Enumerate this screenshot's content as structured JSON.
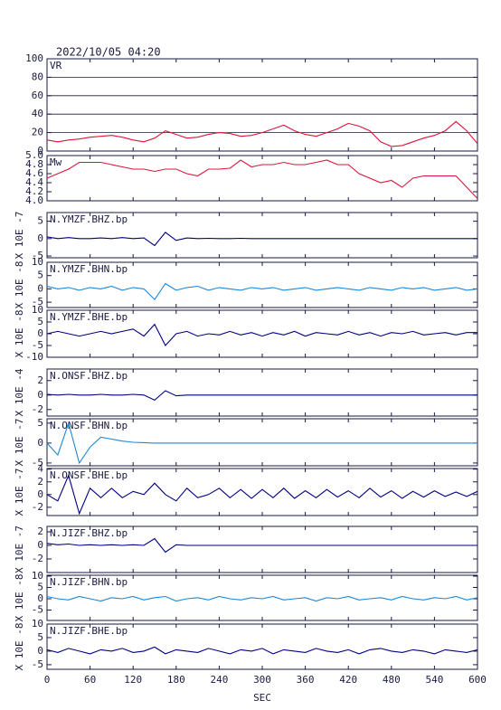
{
  "title": "2022/10/05 04:20",
  "chart_data": [
    {
      "type": "line",
      "title": "VR",
      "xlim": [
        0,
        600
      ],
      "ylim": [
        0,
        100
      ],
      "yticks": [
        0,
        20,
        40,
        60,
        80,
        100
      ],
      "grid": true,
      "x": [
        0,
        15,
        30,
        45,
        60,
        75,
        90,
        105,
        120,
        135,
        150,
        165,
        180,
        195,
        210,
        225,
        240,
        255,
        270,
        285,
        300,
        315,
        330,
        345,
        360,
        375,
        390,
        405,
        420,
        435,
        450,
        465,
        480,
        495,
        510,
        525,
        540,
        555,
        570,
        585,
        600
      ],
      "series": [
        {
          "color": "#dc143c",
          "values": [
            12,
            10,
            12,
            13,
            15,
            16,
            17,
            15,
            12,
            10,
            14,
            22,
            18,
            14,
            15,
            18,
            20,
            19,
            16,
            17,
            20,
            24,
            28,
            22,
            18,
            16,
            20,
            24,
            30,
            27,
            22,
            10,
            5,
            6,
            10,
            14,
            17,
            22,
            32,
            22,
            8
          ]
        }
      ]
    },
    {
      "type": "line",
      "title": "Mw",
      "xlim": [
        0,
        600
      ],
      "ylim": [
        4,
        5
      ],
      "yticks": [
        {
          "value": 4,
          "label": "4.0"
        },
        4.2,
        4.4,
        4.6,
        4.8,
        {
          "value": 5,
          "label": "5.0"
        }
      ],
      "grid": false,
      "x": [
        0,
        15,
        30,
        45,
        60,
        75,
        90,
        105,
        120,
        135,
        150,
        165,
        180,
        195,
        210,
        225,
        240,
        255,
        270,
        285,
        300,
        315,
        330,
        345,
        360,
        375,
        390,
        405,
        420,
        435,
        450,
        465,
        480,
        495,
        510,
        525,
        540,
        555,
        570,
        585,
        600
      ],
      "series": [
        {
          "color": "#dc143c",
          "values": [
            4.5,
            4.6,
            4.7,
            4.85,
            4.85,
            4.85,
            4.8,
            4.75,
            4.7,
            4.7,
            4.65,
            4.7,
            4.7,
            4.6,
            4.55,
            4.7,
            4.7,
            4.72,
            4.9,
            4.75,
            4.8,
            4.8,
            4.85,
            4.8,
            4.8,
            4.85,
            4.9,
            4.8,
            4.8,
            4.6,
            4.5,
            4.4,
            4.45,
            4.3,
            4.5,
            4.55,
            4.55,
            4.55,
            4.55,
            4.3,
            4.05
          ]
        }
      ]
    },
    {
      "type": "line",
      "title": "N.YMZF.BHZ.bp",
      "ylabel": "X 10E -7",
      "xlim": [
        0,
        600
      ],
      "ylim": [
        -5.5,
        7.5
      ],
      "yticks": [
        -5,
        0,
        5
      ],
      "x": [
        0,
        15,
        30,
        45,
        60,
        75,
        90,
        105,
        120,
        135,
        150,
        165,
        180,
        195,
        210,
        225,
        240,
        255,
        270,
        285,
        300,
        315,
        330,
        345,
        360,
        375,
        390,
        405,
        420,
        435,
        450,
        465,
        480,
        495,
        510,
        525,
        540,
        555,
        570,
        585,
        600
      ],
      "series": [
        {
          "color": "#000080",
          "values": [
            0.5,
            0,
            0.3,
            0,
            0,
            0.2,
            0,
            0.3,
            0,
            0.2,
            -2,
            1.8,
            -0.5,
            0.2,
            0,
            0.1,
            0,
            0,
            0.1,
            0,
            0,
            0,
            0,
            0,
            0,
            0,
            0,
            0,
            0,
            0,
            0,
            0,
            0,
            0,
            0,
            0,
            0,
            0,
            0,
            0,
            0
          ]
        }
      ]
    },
    {
      "type": "line",
      "title": "N.YMZF.BHN.bp",
      "ylabel": "X 10E -8",
      "xlim": [
        0,
        600
      ],
      "ylim": [
        -7,
        10
      ],
      "yticks": [
        -5,
        0,
        5,
        10
      ],
      "x": [
        0,
        15,
        30,
        45,
        60,
        75,
        90,
        105,
        120,
        135,
        150,
        165,
        180,
        195,
        210,
        225,
        240,
        255,
        270,
        285,
        300,
        315,
        330,
        345,
        360,
        375,
        390,
        405,
        420,
        435,
        450,
        465,
        480,
        495,
        510,
        525,
        540,
        555,
        570,
        585,
        600
      ],
      "series": [
        {
          "color": "#1e88d8",
          "values": [
            1,
            0,
            0.5,
            -0.5,
            0.5,
            0,
            1,
            -0.5,
            0.5,
            0,
            -4,
            2,
            -0.5,
            0.5,
            1,
            -0.5,
            0.5,
            0,
            -0.5,
            0.5,
            0,
            0.5,
            -0.5,
            0,
            0.5,
            -0.5,
            0,
            0.5,
            0,
            -0.5,
            0.5,
            0,
            -0.5,
            0.5,
            0,
            0.5,
            -0.5,
            0,
            0.5,
            -0.5,
            0
          ]
        }
      ]
    },
    {
      "type": "line",
      "title": "N.YMZF.BHE.bp",
      "ylabel": "X 10E -8",
      "xlim": [
        0,
        600
      ],
      "ylim": [
        -10,
        10
      ],
      "yticks": [
        -10,
        -5,
        0,
        5,
        10
      ],
      "x": [
        0,
        15,
        30,
        45,
        60,
        75,
        90,
        105,
        120,
        135,
        150,
        165,
        180,
        195,
        210,
        225,
        240,
        255,
        270,
        285,
        300,
        315,
        330,
        345,
        360,
        375,
        390,
        405,
        420,
        435,
        450,
        465,
        480,
        495,
        510,
        525,
        540,
        555,
        570,
        585,
        600
      ],
      "series": [
        {
          "color": "#000080",
          "values": [
            0,
            1,
            0,
            -1,
            0,
            1,
            0,
            1,
            2,
            -1,
            4,
            -5,
            0,
            1,
            -1,
            0,
            -0.5,
            1,
            -0.5,
            0.5,
            -1,
            0.5,
            -0.5,
            1,
            -1,
            0.5,
            0,
            -0.5,
            1,
            -0.5,
            0.5,
            -1,
            0.5,
            0,
            1,
            -0.5,
            0,
            0.5,
            -0.5,
            0.5,
            0.5
          ]
        }
      ]
    },
    {
      "type": "line",
      "title": "N.ONSF.BHZ.bp",
      "ylabel": "X 10E -4",
      "xlim": [
        0,
        600
      ],
      "ylim": [
        -2.9,
        3.6
      ],
      "yticks": [
        -2,
        0,
        2
      ],
      "x": [
        0,
        15,
        30,
        45,
        60,
        75,
        90,
        105,
        120,
        135,
        150,
        165,
        180,
        195,
        210,
        225,
        240,
        255,
        270,
        285,
        300,
        315,
        330,
        345,
        360,
        375,
        390,
        405,
        420,
        435,
        450,
        465,
        480,
        495,
        510,
        525,
        540,
        555,
        570,
        585,
        600
      ],
      "series": [
        {
          "color": "#000080",
          "values": [
            0.1,
            0,
            0.1,
            0,
            0,
            0.1,
            0,
            0,
            0.1,
            0,
            -0.7,
            0.6,
            -0.1,
            0,
            0,
            0,
            0,
            0,
            0,
            0,
            0,
            0,
            0,
            0,
            0,
            0,
            0,
            0,
            0,
            0,
            0,
            0,
            0,
            0,
            0,
            0,
            0,
            0,
            0,
            0,
            0
          ]
        }
      ]
    },
    {
      "type": "line",
      "title": "N.ONSF.BHN.bp",
      "ylabel": "X 10E -7",
      "xlim": [
        0,
        600
      ],
      "ylim": [
        -5.7,
        6.1
      ],
      "yticks": [
        -5,
        0,
        5
      ],
      "x": [
        0,
        15,
        30,
        45,
        60,
        75,
        90,
        105,
        120,
        135,
        150,
        165,
        180,
        195,
        210,
        225,
        240,
        255,
        270,
        285,
        300,
        315,
        330,
        345,
        360,
        375,
        390,
        405,
        420,
        435,
        450,
        465,
        480,
        495,
        510,
        525,
        540,
        555,
        570,
        585,
        600
      ],
      "series": [
        {
          "color": "#1e88d8",
          "values": [
            0,
            -3,
            5,
            -5,
            -1,
            1.5,
            1,
            0.5,
            0.2,
            0.1,
            0,
            0,
            0,
            0,
            0,
            0,
            0,
            0,
            0,
            0,
            0,
            0,
            0,
            0,
            0,
            0,
            0,
            0,
            0,
            0,
            0,
            0,
            0,
            0,
            0,
            0,
            0,
            0,
            0,
            0,
            0
          ]
        }
      ]
    },
    {
      "type": "line",
      "title": "N.ONSF.BHE.bp",
      "ylabel": "X 10E -7",
      "xlim": [
        0,
        600
      ],
      "ylim": [
        -3.3,
        4.1
      ],
      "yticks": [
        -2,
        0,
        2,
        4
      ],
      "x": [
        0,
        15,
        30,
        45,
        60,
        75,
        90,
        105,
        120,
        135,
        150,
        165,
        180,
        195,
        210,
        225,
        240,
        255,
        270,
        285,
        300,
        315,
        330,
        345,
        360,
        375,
        390,
        405,
        420,
        435,
        450,
        465,
        480,
        495,
        510,
        525,
        540,
        555,
        570,
        585,
        600
      ],
      "series": [
        {
          "color": "#000080",
          "values": [
            0,
            -1,
            3,
            -3,
            1,
            -0.5,
            1,
            -0.5,
            0.5,
            0,
            1.8,
            0,
            -1,
            1,
            -0.5,
            0,
            1,
            -0.5,
            0.8,
            -0.6,
            0.8,
            -0.5,
            1,
            -0.6,
            0.6,
            -0.5,
            0.8,
            -0.4,
            0.6,
            -0.5,
            1,
            -0.4,
            0.6,
            -0.6,
            0.5,
            -0.4,
            0.6,
            -0.3,
            0.4,
            -0.3,
            0.5
          ]
        }
      ]
    },
    {
      "type": "line",
      "title": "N.JIZF.BHZ.bp",
      "ylabel": "X 10E -7",
      "xlim": [
        0,
        600
      ],
      "ylim": [
        -4,
        2.8
      ],
      "yticks": [
        -2,
        0,
        2
      ],
      "x": [
        0,
        15,
        30,
        45,
        60,
        75,
        90,
        105,
        120,
        135,
        150,
        165,
        180,
        195,
        210,
        225,
        240,
        255,
        270,
        285,
        300,
        315,
        330,
        345,
        360,
        375,
        390,
        405,
        420,
        435,
        450,
        465,
        480,
        495,
        510,
        525,
        540,
        555,
        570,
        585,
        600
      ],
      "series": [
        {
          "color": "#000080",
          "values": [
            0.3,
            0.1,
            0.2,
            0,
            0.1,
            0,
            0.1,
            0,
            0.1,
            0,
            1,
            -1,
            0.1,
            0,
            0,
            0,
            0,
            0,
            0,
            0,
            0,
            0,
            0,
            0,
            0,
            0,
            0,
            0,
            0,
            0,
            0,
            0,
            0,
            0,
            0,
            0,
            0,
            0,
            0,
            0,
            0
          ]
        }
      ]
    },
    {
      "type": "line",
      "title": "N.JIZF.BHN.bp",
      "ylabel": "X 10E -8",
      "xlim": [
        0,
        600
      ],
      "ylim": [
        -9.6,
        10.4
      ],
      "yticks": [
        -5,
        0,
        5,
        10
      ],
      "x": [
        0,
        15,
        30,
        45,
        60,
        75,
        90,
        105,
        120,
        135,
        150,
        165,
        180,
        195,
        210,
        225,
        240,
        255,
        270,
        285,
        300,
        315,
        330,
        345,
        360,
        375,
        390,
        405,
        420,
        435,
        450,
        465,
        480,
        495,
        510,
        525,
        540,
        555,
        570,
        585,
        600
      ],
      "series": [
        {
          "color": "#1e88d8",
          "values": [
            1,
            0,
            -0.5,
            1,
            0,
            -1,
            0.5,
            0,
            1,
            -0.5,
            0.5,
            1,
            -1,
            0,
            0.5,
            -0.5,
            1,
            0,
            -0.5,
            0.5,
            0,
            1,
            -0.5,
            0,
            0.5,
            -1,
            0.5,
            0,
            1,
            -0.5,
            0,
            0.5,
            -0.5,
            1,
            0,
            -0.5,
            0.5,
            0,
            1,
            -0.5,
            0.5
          ]
        }
      ]
    },
    {
      "type": "line",
      "title": "N.JIZF.BHE.bp",
      "ylabel": "X 10E -8",
      "xlim": [
        0,
        600
      ],
      "ylim": [
        -6.7,
        10
      ],
      "yticks": [
        -5,
        0,
        5,
        10
      ],
      "xlabel": "SEC",
      "xticks": [
        0,
        60,
        120,
        180,
        240,
        300,
        360,
        420,
        480,
        540,
        600
      ],
      "x": [
        0,
        15,
        30,
        45,
        60,
        75,
        90,
        105,
        120,
        135,
        150,
        165,
        180,
        195,
        210,
        225,
        240,
        255,
        270,
        285,
        300,
        315,
        330,
        345,
        360,
        375,
        390,
        405,
        420,
        435,
        450,
        465,
        480,
        495,
        510,
        525,
        540,
        555,
        570,
        585,
        600
      ],
      "series": [
        {
          "color": "#000080",
          "values": [
            0.5,
            -0.5,
            1,
            0,
            -1,
            0.5,
            0,
            1,
            -0.5,
            0,
            1.5,
            -1,
            0.5,
            0,
            -0.5,
            1,
            0,
            -1,
            0.5,
            0,
            1,
            -1,
            0.5,
            0,
            -0.5,
            1,
            0,
            -0.5,
            0.5,
            -1,
            0.5,
            1,
            0,
            -0.5,
            0.5,
            0,
            -1,
            0.5,
            0,
            -0.5,
            0.5
          ]
        }
      ]
    }
  ]
}
